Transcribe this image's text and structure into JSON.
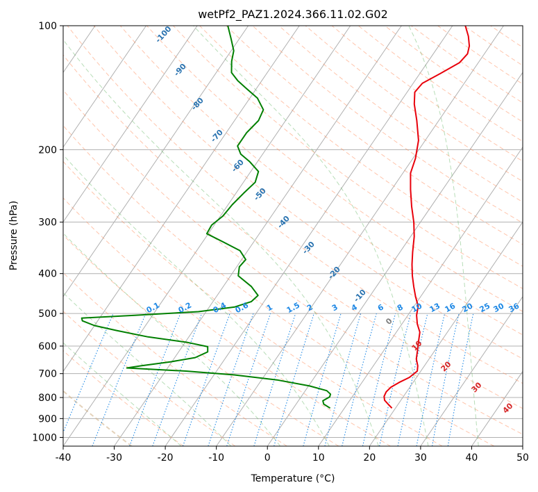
{
  "chart_data": {
    "type": "line",
    "title": "wetPf2_PAZ1.2024.366.11.02.G02",
    "xlabel": "Temperature (°C)",
    "ylabel": "Pressure (hPa)",
    "xlim": [
      -40,
      50
    ],
    "ylim": [
      1050,
      100
    ],
    "y_scale": "log",
    "skew": true,
    "grid": true,
    "x_ticks": [
      -40,
      -30,
      -20,
      -10,
      0,
      10,
      20,
      30,
      40,
      50
    ],
    "y_ticks": [
      100,
      200,
      300,
      400,
      500,
      600,
      700,
      800,
      900,
      1000
    ],
    "series": [
      {
        "role": "temperature",
        "color": "#e8000b",
        "points": [
          [
            849,
            19.3
          ],
          [
            830,
            18.0
          ],
          [
            812,
            16.8
          ],
          [
            795,
            16.2
          ],
          [
            775,
            16.0
          ],
          [
            755,
            16.3
          ],
          [
            735,
            17.3
          ],
          [
            715,
            18.6
          ],
          [
            690,
            19.3
          ],
          [
            670,
            18.7
          ],
          [
            645,
            17.5
          ],
          [
            615,
            16.6
          ],
          [
            585,
            15.6
          ],
          [
            555,
            14.6
          ],
          [
            530,
            13.0
          ],
          [
            505,
            11.7
          ],
          [
            480,
            10.8
          ],
          [
            455,
            9.0
          ],
          [
            430,
            7.3
          ],
          [
            405,
            5.6
          ],
          [
            380,
            4.0
          ],
          [
            355,
            2.5
          ],
          [
            325,
            0.7
          ],
          [
            300,
            -1.3
          ],
          [
            275,
            -3.8
          ],
          [
            250,
            -6.3
          ],
          [
            228,
            -8.5
          ],
          [
            210,
            -9.5
          ],
          [
            190,
            -11.3
          ],
          [
            170,
            -14.3
          ],
          [
            155,
            -17.0
          ],
          [
            145,
            -18.5
          ],
          [
            138,
            -18.2
          ],
          [
            130,
            -15.8
          ],
          [
            123,
            -13.7
          ],
          [
            117,
            -13.3
          ],
          [
            112,
            -14.0
          ],
          [
            106,
            -15.5
          ],
          [
            100,
            -17.5
          ]
        ]
      },
      {
        "role": "dewpoint",
        "color": "#007f00",
        "points": [
          [
            849,
            7.2
          ],
          [
            830,
            5.4
          ],
          [
            815,
            4.8
          ],
          [
            797,
            5.6
          ],
          [
            785,
            5.4
          ],
          [
            770,
            4.2
          ],
          [
            750,
            0.2
          ],
          [
            725,
            -7.0
          ],
          [
            705,
            -16.0
          ],
          [
            690,
            -26.0
          ],
          [
            678,
            -38.0
          ],
          [
            670,
            -35.5
          ],
          [
            655,
            -30.2
          ],
          [
            640,
            -26.0
          ],
          [
            620,
            -24.3
          ],
          [
            602,
            -25.0
          ],
          [
            588,
            -29.5
          ],
          [
            570,
            -38.0
          ],
          [
            550,
            -45.0
          ],
          [
            535,
            -50.0
          ],
          [
            521,
            -53.0
          ],
          [
            513,
            -53.5
          ],
          [
            505,
            -43.5
          ],
          [
            495,
            -31.5
          ],
          [
            482,
            -25.0
          ],
          [
            468,
            -22.5
          ],
          [
            452,
            -22.0
          ],
          [
            430,
            -24.5
          ],
          [
            405,
            -28.5
          ],
          [
            385,
            -29.5
          ],
          [
            370,
            -29.2
          ],
          [
            352,
            -31.5
          ],
          [
            335,
            -36.0
          ],
          [
            320,
            -40.3
          ],
          [
            305,
            -40.5
          ],
          [
            290,
            -39.5
          ],
          [
            272,
            -39.2
          ],
          [
            255,
            -38.5
          ],
          [
            240,
            -37.7
          ],
          [
            226,
            -38.5
          ],
          [
            214,
            -41.5
          ],
          [
            205,
            -44.3
          ],
          [
            196,
            -46.0
          ],
          [
            182,
            -46.0
          ],
          [
            170,
            -45.3
          ],
          [
            160,
            -45.8
          ],
          [
            150,
            -48.5
          ],
          [
            142,
            -52.0
          ],
          [
            136,
            -54.7
          ],
          [
            130,
            -57.0
          ],
          [
            122,
            -58.5
          ],
          [
            115,
            -59.5
          ],
          [
            108,
            -61.5
          ],
          [
            100,
            -64.0
          ]
        ]
      }
    ],
    "dry_adiabats": [
      -30,
      -20,
      -10,
      0,
      10,
      20,
      30,
      40,
      50,
      60,
      70,
      80,
      90,
      100,
      110,
      120,
      130,
      140,
      150,
      160,
      170,
      180,
      190,
      200,
      210,
      220,
      230
    ],
    "moist_adiabats": [
      -20,
      -10,
      0,
      10,
      20,
      30,
      40
    ],
    "mixing_ratios": [
      0.1,
      0.2,
      0.4,
      0.6,
      1,
      1.5,
      2,
      3,
      4,
      6,
      8,
      10,
      13,
      16,
      20,
      25,
      30,
      36
    ],
    "isotherm_labels": [
      "-100",
      "-90",
      "-80",
      "-70",
      "-60",
      "-50",
      "-40",
      "-30",
      "-20",
      "-10"
    ],
    "wet_bulb_labels": [
      "0",
      "10",
      "20",
      "30",
      "40"
    ],
    "mixing_ratio_labels": [
      "0.1",
      "0.2",
      "0.4",
      "0.6",
      "1",
      "1.5",
      "2",
      "3",
      "4",
      "6",
      "8",
      "10",
      "13",
      "16",
      "20",
      "25",
      "30",
      "36"
    ]
  }
}
